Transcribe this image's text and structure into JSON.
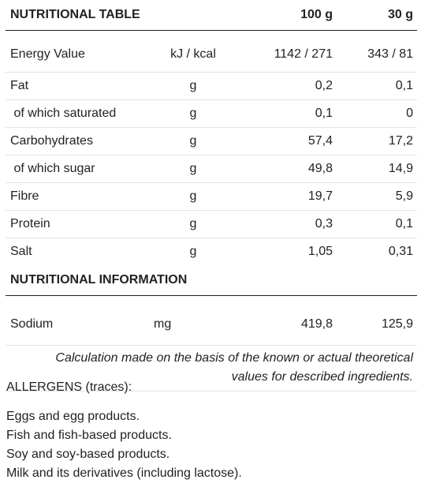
{
  "table": {
    "header": {
      "title": "NUTRITIONAL TABLE",
      "col_100g": "100 g",
      "col_30g": "30 g"
    },
    "rows": [
      {
        "name": "Energy Value",
        "unit": "kJ / kcal",
        "per_100g": "1142 / 271",
        "per_30g": "343 / 81"
      },
      {
        "name": "Fat",
        "unit": "g",
        "per_100g": "0,2",
        "per_30g": "0,1"
      },
      {
        "name": " of which saturated",
        "unit": "g",
        "per_100g": "0,1",
        "per_30g": "0"
      },
      {
        "name": "Carbohydrates",
        "unit": "g",
        "per_100g": "57,4",
        "per_30g": "17,2"
      },
      {
        "name": " of which sugar",
        "unit": "g",
        "per_100g": "49,8",
        "per_30g": "14,9"
      },
      {
        "name": "Fibre",
        "unit": "g",
        "per_100g": "19,7",
        "per_30g": "5,9"
      },
      {
        "name": "Protein",
        "unit": "g",
        "per_100g": "0,3",
        "per_30g": "0,1"
      },
      {
        "name": "Salt",
        "unit": "g",
        "per_100g": "1,05",
        "per_30g": "0,31"
      }
    ],
    "info_title": "NUTRITIONAL INFORMATION",
    "info_rows": [
      {
        "name": "Sodium",
        "unit": "mg",
        "per_100g": "419,8",
        "per_30g": "125,9"
      }
    ],
    "note": "Calculation made on the basis of the known or actual theoretical values for described ingredients."
  },
  "allergens": {
    "title": "ALLERGENS (traces):",
    "items": [
      "Eggs and egg products.",
      "Fish and fish-based products.",
      "Soy and soy-based products.",
      "Milk and its derivatives (including lactose)."
    ]
  }
}
